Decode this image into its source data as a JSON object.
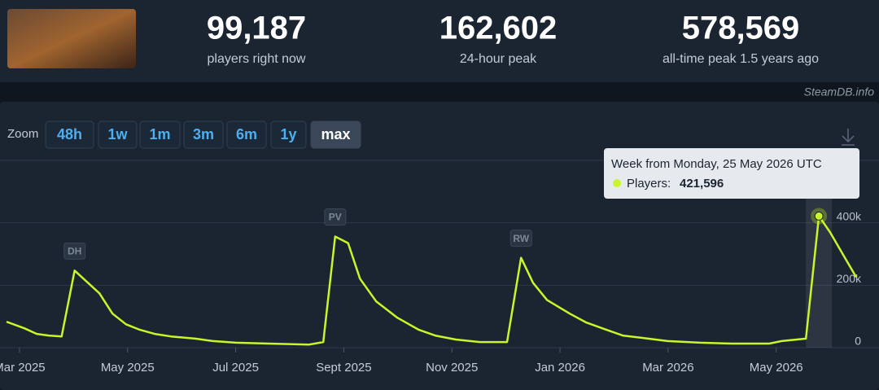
{
  "header": {
    "stats": [
      {
        "value": "99,187",
        "label": "players right now"
      },
      {
        "value": "162,602",
        "label": "24-hour peak"
      },
      {
        "value": "578,569",
        "label": "all-time peak 1.5 years ago"
      }
    ],
    "brand": "SteamDB.info"
  },
  "zoom": {
    "label": "Zoom",
    "options": [
      "48h",
      "1w",
      "1m",
      "3m",
      "6m",
      "1y",
      "max"
    ],
    "active": "max"
  },
  "chart_data": {
    "type": "line",
    "x": [
      2.76,
      3.09,
      3.32,
      3.54,
      3.78,
      4.02,
      4.48,
      4.72,
      4.97,
      5.23,
      5.5,
      5.8,
      6.25,
      6.58,
      7.0,
      7.61,
      8.36,
      8.62,
      8.84,
      9.08,
      9.3,
      9.6,
      9.99,
      10.39,
      10.69,
      11.07,
      11.52,
      12.02,
      12.28,
      12.5,
      12.76,
      13.18,
      13.48,
      13.86,
      14.16,
      14.54,
      14.99,
      15.59,
      16.19,
      16.87,
      17.1,
      17.55,
      17.79,
      18.0,
      18.27,
      18.48
    ],
    "xlim": [
      2.76,
      18.48
    ],
    "xticks": [
      {
        "value": 3,
        "label": "Mar 2025"
      },
      {
        "value": 5,
        "label": "May 2025"
      },
      {
        "value": 7,
        "label": "Jul 2025"
      },
      {
        "value": 9,
        "label": "Sept 2025"
      },
      {
        "value": 11,
        "label": "Nov 2025"
      },
      {
        "value": 13,
        "label": "Jan 2026"
      },
      {
        "value": 15,
        "label": "Mar 2026"
      },
      {
        "value": 17,
        "label": "May 2026"
      }
    ],
    "ylim": [
      0,
      600000
    ],
    "yticks": [
      0,
      {
        "value": 200000,
        "label": "200k"
      },
      {
        "value": 400000,
        "label": "400k"
      }
    ],
    "grid": true,
    "series": [
      {
        "color": "#c9f52a",
        "values": [
          83000,
          62000,
          44000,
          39000,
          36000,
          247000,
          174000,
          109000,
          75000,
          57000,
          44000,
          36000,
          29000,
          21000,
          16000,
          13000,
          10000,
          18000,
          356000,
          335000,
          221000,
          148000,
          96000,
          57000,
          39000,
          26000,
          18000,
          18000,
          288000,
          208000,
          153000,
          109000,
          81000,
          57000,
          39000,
          31000,
          21000,
          16000,
          13000,
          13000,
          21000,
          29000,
          421596,
          369000,
          288000,
          226000
        ],
        "value_labels": [
          null,
          null,
          null,
          null,
          null,
          null,
          null,
          null,
          null,
          null,
          null,
          null,
          null,
          null,
          null,
          null,
          null,
          null,
          null,
          null,
          null,
          null,
          null,
          null,
          null,
          null,
          null,
          null,
          null,
          null,
          null,
          null,
          null,
          null,
          null,
          null,
          null,
          null,
          null,
          null,
          null,
          null,
          "421,596",
          null,
          null,
          null
        ]
      }
    ],
    "tooltip": {
      "title": "Week from Monday, 25 May 2026 UTC",
      "series_label": "Players:"
    },
    "annotations": [
      {
        "text": "DH",
        "x": 4.02
      },
      {
        "text": "PV",
        "x": 8.84
      },
      {
        "text": "RW",
        "x": 12.28
      }
    ]
  }
}
